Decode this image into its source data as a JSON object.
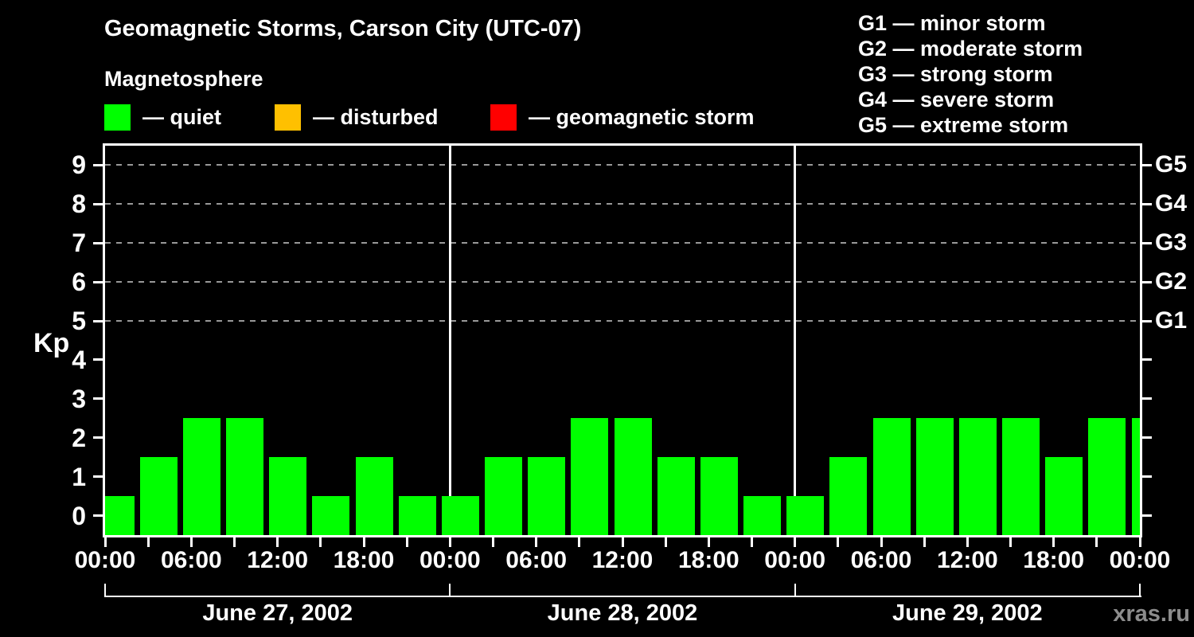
{
  "title": "Geomagnetic Storms, Carson City (UTC-07)",
  "subtitle": "Magnetosphere",
  "color_legend": [
    {
      "name": "quiet",
      "label": "— quiet",
      "color": "#00ff00"
    },
    {
      "name": "disturbed",
      "label": "— disturbed",
      "color": "#ffc000"
    },
    {
      "name": "geomagnetic-storm",
      "label": "— geomagnetic storm",
      "color": "#ff0000"
    }
  ],
  "g_scale_legend": [
    "G1 — minor storm",
    "G2 — moderate storm",
    "G3 — strong storm",
    "G4 — severe storm",
    "G5 — extreme storm"
  ],
  "watermark": "xras.ru",
  "chart_data": {
    "type": "bar",
    "title": "Geomagnetic Storms, Carson City (UTC-07)",
    "ylabel": "Kp",
    "ylim": [
      -0.5,
      9.5
    ],
    "yticks": [
      0,
      1,
      2,
      3,
      4,
      5,
      6,
      7,
      8,
      9
    ],
    "gridlines_at": [
      5,
      6,
      7,
      8,
      9
    ],
    "grid_style": "dashed-gray",
    "right_axis_labels": [
      {
        "kp": 5,
        "label": "G1"
      },
      {
        "kp": 6,
        "label": "G2"
      },
      {
        "kp": 7,
        "label": "G3"
      },
      {
        "kp": 8,
        "label": "G4"
      },
      {
        "kp": 9,
        "label": "G5"
      }
    ],
    "x_tick_interval_hours": 3,
    "x_tick_labels": [
      "00:00",
      "06:00",
      "12:00",
      "18:00",
      "00:00",
      "06:00",
      "12:00",
      "18:00",
      "00:00",
      "06:00",
      "12:00",
      "18:00",
      "00:00"
    ],
    "days": [
      {
        "date": "June 27, 2002",
        "values": [
          1,
          2,
          3,
          3,
          2,
          1,
          2,
          1
        ]
      },
      {
        "date": "June 28, 2002",
        "values": [
          1,
          2,
          2,
          3,
          3,
          2,
          2,
          1
        ]
      },
      {
        "date": "June 29, 2002",
        "values": [
          1,
          2,
          3,
          3,
          3,
          3,
          2,
          3
        ]
      }
    ],
    "partial_next_day_value": 3,
    "colors": {
      "quiet": "#00ff00",
      "disturbed": "#ffc000",
      "storm": "#ff0000"
    },
    "color_rule": "kp<=3 quiet, kp=4 disturbed, kp>=5 storm",
    "legend_position": "top",
    "background": "#000000"
  }
}
